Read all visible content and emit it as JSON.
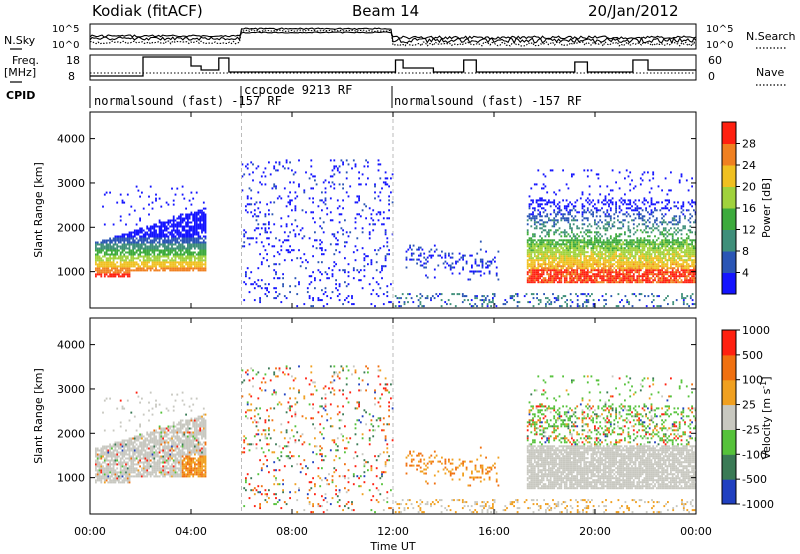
{
  "header": {
    "station": "Kodiak (fitACF)",
    "beam": "Beam 14",
    "date": "20/Jan/2012"
  },
  "left_labels": {
    "nsky": "N.Sky",
    "freq_top": "Freq.",
    "freq_unit": "[MHz]",
    "cpid": "CPID"
  },
  "right_labels": {
    "nsearch": "N.Search",
    "nave": "Nave"
  },
  "noise_axis": {
    "left_ticks": [
      "10^5",
      "10^0"
    ],
    "right_ticks": [
      "10^5",
      "10^0"
    ]
  },
  "freq_axis": {
    "left_ticks": [
      "18",
      "8"
    ],
    "right_ticks": [
      "60",
      "0"
    ]
  },
  "cpid_segments": [
    {
      "label": "normalsound (fast) -157 RF"
    },
    {
      "label": "ccpcode 9213 RF"
    },
    {
      "label": "normalsound (fast) -157 RF"
    }
  ],
  "chart_data": [
    {
      "type": "heatmap",
      "name": "power",
      "ylabel": "Slant Range [km]",
      "yticks": [
        "1000",
        "2000",
        "3000",
        "4000"
      ],
      "ylim": [
        180,
        4600
      ],
      "colorbar": {
        "label": "Power [dB]",
        "ticks": [
          "4",
          "8",
          "12",
          "16",
          "20",
          "24",
          "28"
        ],
        "colors": [
          "#1414ff",
          "#2a55b5",
          "#3f8f7a",
          "#3caa3c",
          "#a0d23c",
          "#f0c020",
          "#f08020",
          "#ff2010"
        ]
      }
    },
    {
      "type": "heatmap",
      "name": "velocity",
      "ylabel": "Slant Range [km]",
      "yticks": [
        "1000",
        "2000",
        "3000",
        "4000"
      ],
      "ylim": [
        180,
        4600
      ],
      "colorbar": {
        "label": "Velocity [m s",
        "label_sup": "-1",
        "label_end": "]",
        "ticks": [
          "1000",
          "500",
          "100",
          "25",
          "-25",
          "-100",
          "-500",
          "-1000"
        ],
        "colors": [
          "#2040c0",
          "#3a7a55",
          "#55c23a",
          "#c8c8c0",
          "#f0a020",
          "#f07010",
          "#ff2010"
        ]
      }
    }
  ],
  "time_axis": {
    "label": "Time UT",
    "ticks": [
      "00:00",
      "04:00",
      "08:00",
      "12:00",
      "16:00",
      "20:00",
      "00:00"
    ]
  }
}
